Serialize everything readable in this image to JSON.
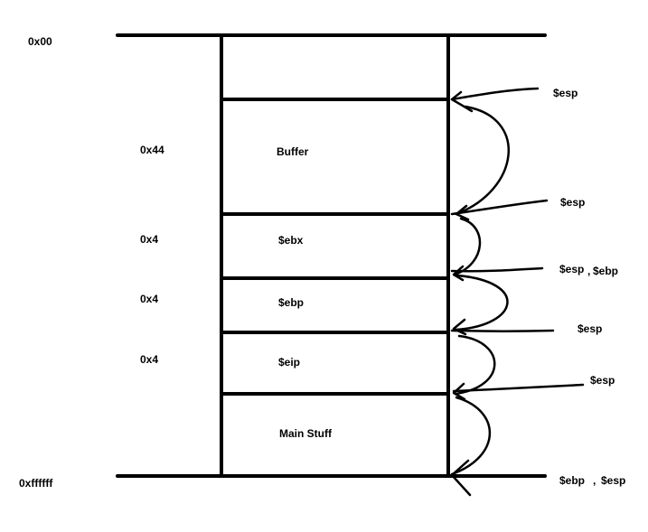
{
  "addresses": {
    "top": "0x00",
    "bottom": "0xffffff"
  },
  "sizes": {
    "buffer": "0x44",
    "ebx": "0x4",
    "ebp": "0x4",
    "eip": "0x4"
  },
  "cells": {
    "buffer": "Buffer",
    "ebx": "$ebx",
    "ebp": "$ebp",
    "eip": "$eip",
    "main": "Main Stuff"
  },
  "pointers": {
    "p1": "$esp",
    "p2": "$esp",
    "p3_a": "$esp",
    "p3_sep": ",",
    "p3_b": "$ebp",
    "p4": "$esp",
    "p5": "$esp",
    "p6_a": "$ebp",
    "p6_sep": ",",
    "p6_b": "$esp"
  },
  "colors": {
    "ink": "#000000",
    "background": "#ffffff"
  }
}
